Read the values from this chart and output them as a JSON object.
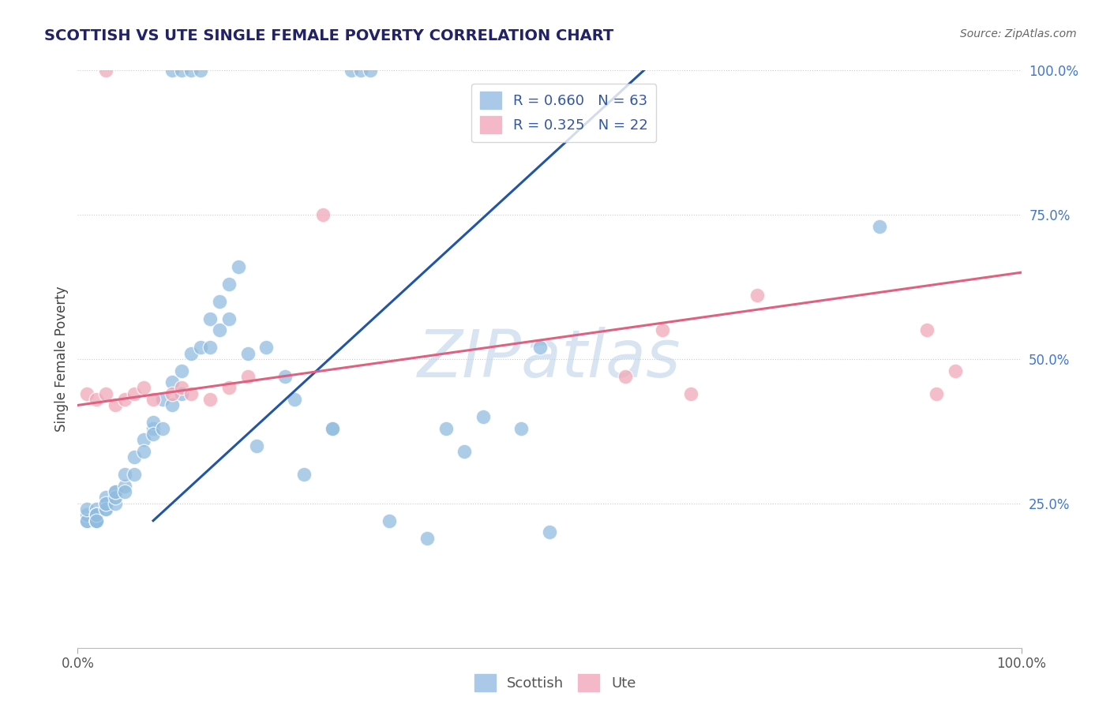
{
  "title": "SCOTTISH VS UTE SINGLE FEMALE POVERTY CORRELATION CHART",
  "source": "Source: ZipAtlas.com",
  "ylabel": "Single Female Poverty",
  "xlabel": "",
  "xlim": [
    0.0,
    1.0
  ],
  "ylim": [
    0.0,
    1.0
  ],
  "xtick_labels": [
    "0.0%",
    "100.0%"
  ],
  "ytick_labels": [
    "25.0%",
    "50.0%",
    "75.0%",
    "100.0%"
  ],
  "ytick_positions": [
    0.25,
    0.5,
    0.75,
    1.0
  ],
  "grid_color": "#cccccc",
  "background_color": "#ffffff",
  "watermark": "ZIPatlas",
  "legend_r_scottish": "R = 0.660",
  "legend_n_scottish": "N = 63",
  "legend_r_ute": "R = 0.325",
  "legend_n_ute": "N = 22",
  "scottish_color": "#90bce0",
  "ute_color": "#f0a8b8",
  "scottish_line_color": "#2255aa",
  "ute_line_color": "#e06080",
  "scottish_line_x0": 0.08,
  "scottish_line_y0": 0.22,
  "scottish_line_x1": 0.6,
  "scottish_line_y1": 1.0,
  "ute_line_x0": 0.0,
  "ute_line_y0": 0.42,
  "ute_line_x1": 1.0,
  "ute_line_y1": 0.65,
  "scottish_x": [
    0.01,
    0.01,
    0.01,
    0.01,
    0.02,
    0.02,
    0.02,
    0.02,
    0.02,
    0.02,
    0.02,
    0.02,
    0.03,
    0.03,
    0.03,
    0.03,
    0.03,
    0.04,
    0.04,
    0.04,
    0.04,
    0.05,
    0.05,
    0.05,
    0.06,
    0.06,
    0.07,
    0.07,
    0.08,
    0.08,
    0.08,
    0.09,
    0.09,
    0.1,
    0.1,
    0.11,
    0.11,
    0.12,
    0.13,
    0.14,
    0.14,
    0.15,
    0.15,
    0.16,
    0.16,
    0.17,
    0.18,
    0.19,
    0.2,
    0.22,
    0.23,
    0.24,
    0.27,
    0.27,
    0.33,
    0.37,
    0.39,
    0.41,
    0.43,
    0.47,
    0.49,
    0.5,
    0.85
  ],
  "scottish_y": [
    0.22,
    0.23,
    0.22,
    0.24,
    0.22,
    0.23,
    0.22,
    0.22,
    0.24,
    0.23,
    0.23,
    0.22,
    0.24,
    0.25,
    0.26,
    0.24,
    0.25,
    0.25,
    0.27,
    0.26,
    0.27,
    0.28,
    0.3,
    0.27,
    0.33,
    0.3,
    0.36,
    0.34,
    0.38,
    0.39,
    0.37,
    0.43,
    0.38,
    0.46,
    0.42,
    0.48,
    0.44,
    0.51,
    0.52,
    0.57,
    0.52,
    0.6,
    0.55,
    0.63,
    0.57,
    0.66,
    0.51,
    0.35,
    0.52,
    0.47,
    0.43,
    0.3,
    0.38,
    0.38,
    0.22,
    0.19,
    0.38,
    0.34,
    0.4,
    0.38,
    0.52,
    0.2,
    0.73
  ],
  "scottish_top_x": [
    0.1,
    0.11,
    0.12,
    0.13,
    0.29,
    0.3,
    0.31
  ],
  "scottish_top_y": [
    1.0,
    1.0,
    1.0,
    1.0,
    1.0,
    1.0,
    1.0
  ],
  "ute_x": [
    0.01,
    0.02,
    0.03,
    0.04,
    0.05,
    0.06,
    0.07,
    0.08,
    0.1,
    0.11,
    0.12,
    0.14,
    0.16,
    0.18,
    0.26,
    0.58,
    0.62,
    0.65,
    0.72,
    0.9,
    0.91,
    0.93
  ],
  "ute_y": [
    0.44,
    0.43,
    0.44,
    0.42,
    0.43,
    0.44,
    0.45,
    0.43,
    0.44,
    0.45,
    0.44,
    0.43,
    0.45,
    0.47,
    0.75,
    0.47,
    0.55,
    0.44,
    0.61,
    0.55,
    0.44,
    0.48
  ],
  "ute_top_x": [
    0.03
  ],
  "ute_top_y": [
    1.0
  ]
}
